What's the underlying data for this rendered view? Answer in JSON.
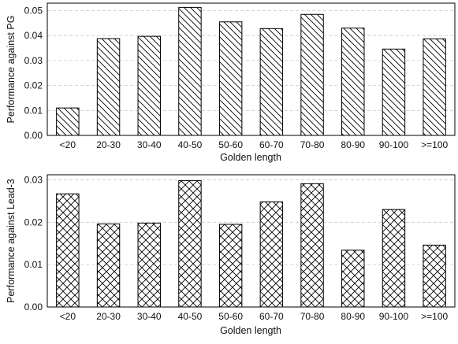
{
  "chart_data": [
    {
      "type": "bar",
      "categories": [
        "<20",
        "20-30",
        "30-40",
        "40-50",
        "50-60",
        "60-70",
        "70-80",
        "80-90",
        "90-100",
        ">=100"
      ],
      "values": [
        0.011,
        0.0388,
        0.0397,
        0.0513,
        0.0455,
        0.0428,
        0.0485,
        0.043,
        0.0346,
        0.0387
      ],
      "xlabel": "Golden length",
      "ylabel": "Performance against PG",
      "ylim": [
        0,
        0.053
      ],
      "yticks": [
        "0.00",
        "0.01",
        "0.02",
        "0.03",
        "0.04",
        "0.05"
      ],
      "grid": "horizontal dashed",
      "hatch": "diagonal",
      "bar_fill": "#ffffff",
      "bar_edge": "#000000"
    },
    {
      "type": "bar",
      "categories": [
        "<20",
        "20-30",
        "30-40",
        "40-50",
        "50-60",
        "60-70",
        "70-80",
        "80-90",
        "90-100",
        ">=100"
      ],
      "values": [
        0.0267,
        0.0196,
        0.0198,
        0.0298,
        0.0195,
        0.0248,
        0.0291,
        0.0134,
        0.023,
        0.0146
      ],
      "xlabel": "Golden length",
      "ylabel": "Performance against Lead-3",
      "ylim": [
        0,
        0.0312
      ],
      "yticks": [
        "0.00",
        "0.01",
        "0.02",
        "0.03"
      ],
      "grid": "horizontal dashed",
      "hatch": "crosshatch",
      "bar_fill": "#ffffff",
      "bar_edge": "#000000"
    }
  ]
}
